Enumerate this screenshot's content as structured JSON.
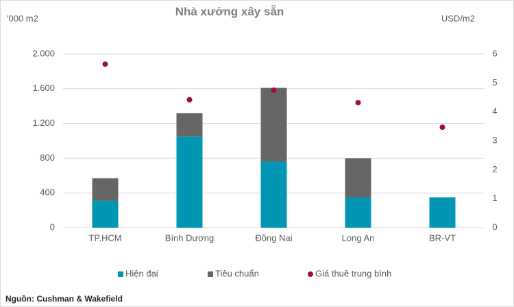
{
  "chart_data": {
    "type": "bar",
    "title": "Nhà xưởng xây sẵn",
    "y_label": "'000 m2",
    "y2_label": "USD/m2",
    "source": "Nguồn: Cushman & Wakefield",
    "stacked": true,
    "grid": true,
    "categories": [
      "TP.HCM",
      "Bình Dương",
      "Đồng Nai",
      "Long An",
      "BR-VT"
    ],
    "series": [
      {
        "name": "Hiện đại",
        "color": "#0096b4",
        "values": [
          310,
          1050,
          760,
          350,
          350
        ]
      },
      {
        "name": "Tiêu chuẩn",
        "color": "#666666",
        "values": [
          260,
          270,
          850,
          450,
          0
        ]
      },
      {
        "name": "Giá thuê trung bình",
        "color": "#a0112b",
        "axis": "y2",
        "values": [
          5.65,
          4.42,
          4.75,
          4.32,
          3.47
        ]
      }
    ],
    "ylim": [
      0,
      2000
    ],
    "yticks": [
      0,
      400,
      800,
      {
        "value": 1200,
        "label": "1.200"
      },
      {
        "value": 1600,
        "label": "1.600"
      },
      {
        "value": 2000,
        "label": "2.000"
      }
    ],
    "y2lim": [
      0,
      6
    ],
    "y2ticks": [
      0,
      1,
      2,
      3,
      4,
      5,
      6
    ],
    "legend": "bottom"
  }
}
